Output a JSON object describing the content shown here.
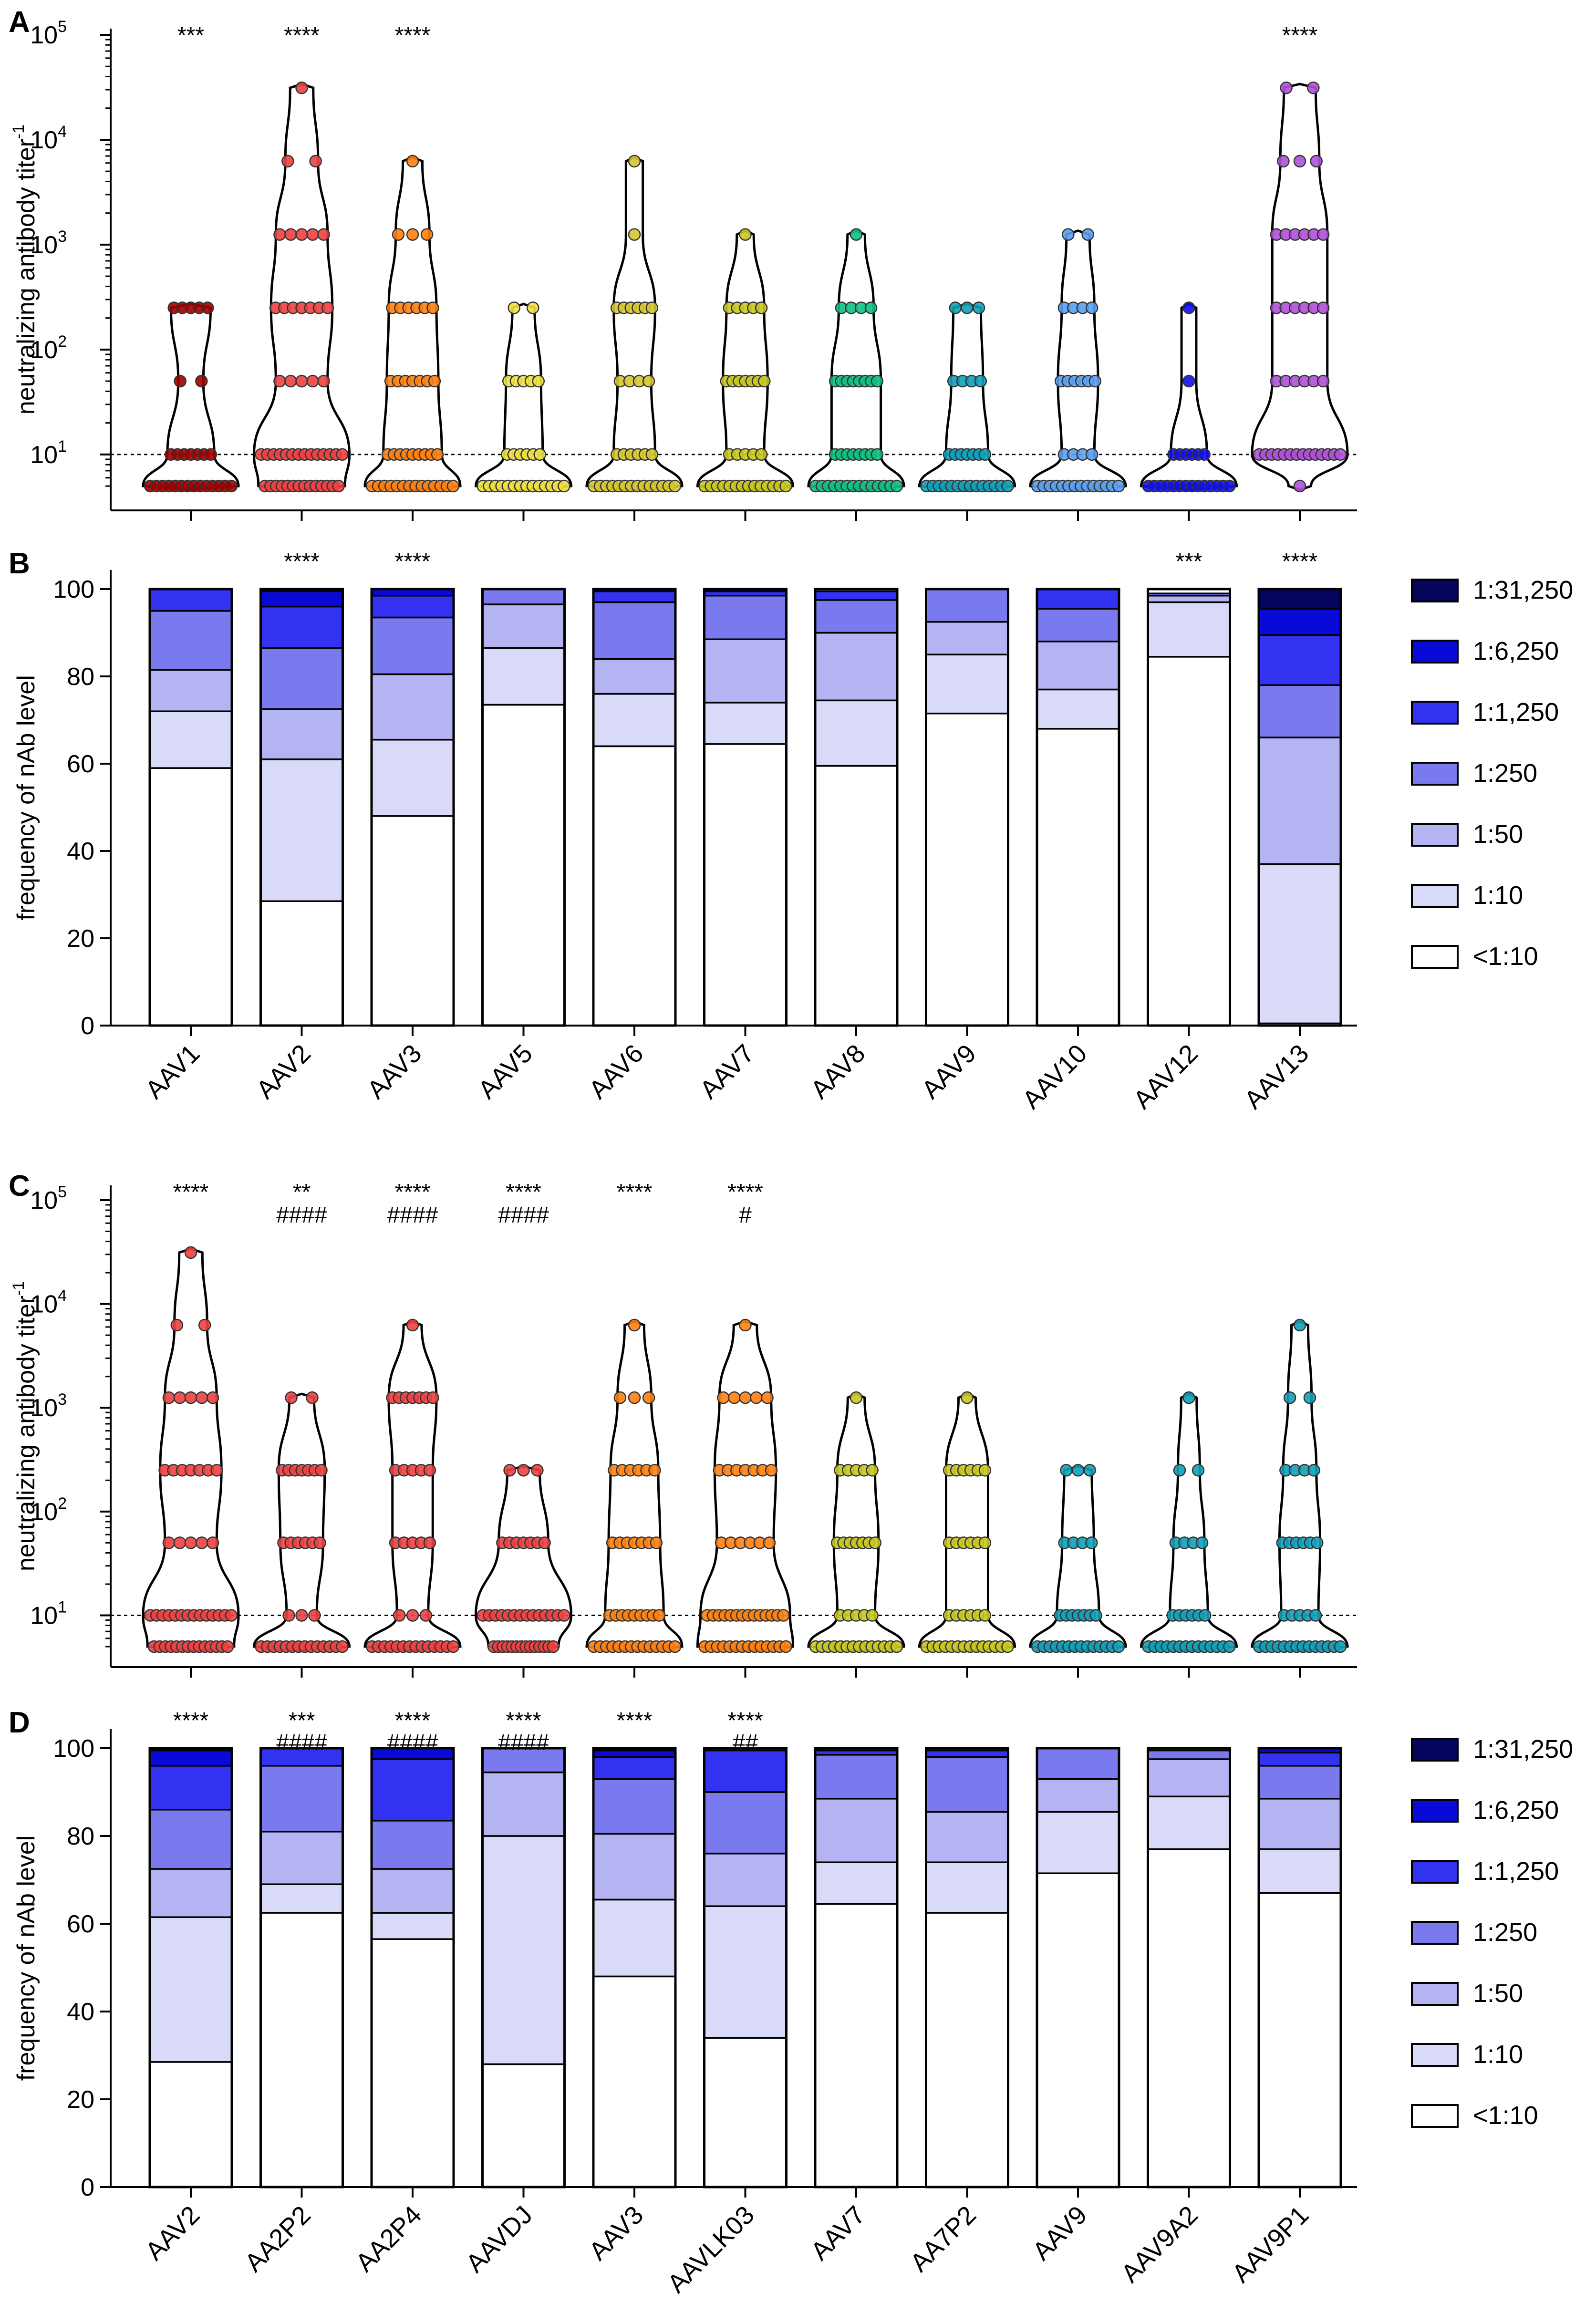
{
  "colors": {
    "levels": [
      "#ffffff",
      "#d9d9f8",
      "#b4b4f2",
      "#7a7aee",
      "#3232f0",
      "#0a0ad8",
      "#05055e"
    ],
    "reference_line": "#000000"
  },
  "chart_data": [
    {
      "type": "violin",
      "panel": "A",
      "ylabel": "neutralizing antibody titer",
      "ylabel_sup": "-1",
      "yscale": "log10",
      "ylim": [
        3,
        100000
      ],
      "yticks": [
        10,
        100,
        1000,
        10000,
        100000
      ],
      "ytick_labels": [
        {
          "base": "10",
          "exp": "1"
        },
        {
          "base": "10",
          "exp": "2"
        },
        {
          "base": "10",
          "exp": "3"
        },
        {
          "base": "10",
          "exp": "4"
        },
        {
          "base": "10",
          "exp": "5"
        }
      ],
      "reference_line": 10,
      "titer_levels": [
        5,
        10,
        50,
        250,
        1250,
        6250,
        31250
      ],
      "categories": [
        "AAV1",
        "AAV2",
        "AAV3",
        "AAV5",
        "AAV6",
        "AAV7",
        "AAV8",
        "AAV9",
        "AAV10",
        "AAV12",
        "AAV13"
      ],
      "colors": [
        "#a00000",
        "#ee4040",
        "#ff7f0e",
        "#f0e040",
        "#d4c830",
        "#c8c820",
        "#10c080",
        "#10a0b8",
        "#5aa0f0",
        "#1010f0",
        "#b050d8"
      ],
      "significance": [
        [
          "***"
        ],
        [
          "****"
        ],
        [
          "****"
        ],
        [],
        [],
        [],
        [],
        [],
        [],
        [],
        [
          "****"
        ]
      ],
      "counts": [
        [
          29,
          7,
          2,
          5,
          0,
          0,
          0
        ],
        [
          14,
          17,
          5,
          7,
          5,
          2,
          1
        ],
        [
          24,
          9,
          7,
          6,
          3,
          1,
          0
        ],
        [
          37,
          6,
          5,
          2,
          0,
          0,
          0
        ],
        [
          32,
          6,
          4,
          6,
          1,
          1,
          0
        ],
        [
          32,
          5,
          7,
          5,
          1,
          0,
          0
        ],
        [
          30,
          8,
          8,
          4,
          1,
          0,
          0
        ],
        [
          36,
          7,
          4,
          3,
          0,
          0,
          0
        ],
        [
          34,
          4,
          6,
          4,
          2,
          0,
          0
        ],
        [
          42,
          6,
          1,
          1,
          0,
          0,
          0
        ],
        [
          1,
          18,
          6,
          6,
          6,
          3,
          2
        ]
      ]
    },
    {
      "type": "stacked-bar",
      "panel": "B",
      "ylabel": "frequency of nAb level",
      "ylim": [
        0,
        100
      ],
      "yticks": [
        0,
        20,
        40,
        60,
        80,
        100
      ],
      "categories": [
        "AAV1",
        "AAV2",
        "AAV3",
        "AAV5",
        "AAV6",
        "AAV7",
        "AAV8",
        "AAV9",
        "AAV10",
        "AAV12",
        "AAV13"
      ],
      "significance": [
        [],
        [
          "****"
        ],
        [
          "****"
        ],
        [],
        [],
        [],
        [],
        [],
        [],
        [
          "***"
        ],
        [
          "****"
        ]
      ],
      "legend": [
        "1:31,250",
        "1:6,250",
        "1:1,250",
        "1:250",
        "1:50",
        "1:10",
        "<1:10"
      ],
      "series": [
        {
          "name": "<1:10",
          "values": [
            59,
            28.5,
            48,
            73.5,
            64,
            64.5,
            59.5,
            71.5,
            68,
            84.5,
            0.5
          ]
        },
        {
          "name": "1:10",
          "values": [
            13,
            32.5,
            17.5,
            13,
            12,
            9.5,
            15,
            13.5,
            9,
            12.5,
            36.5
          ]
        },
        {
          "name": "1:50",
          "values": [
            9.5,
            11.5,
            15,
            10,
            8,
            14.5,
            15.5,
            7.5,
            11,
            1.5,
            29
          ]
        },
        {
          "name": "1:250",
          "values": [
            13.5,
            14,
            13,
            3.5,
            13,
            10,
            7.5,
            7.5,
            7.5,
            0.5,
            12
          ]
        },
        {
          "name": "1:1,250",
          "values": [
            5,
            9.5,
            5,
            0,
            2.5,
            1,
            2,
            0,
            4.5,
            0,
            11.5
          ]
        },
        {
          "name": "1:6,250",
          "values": [
            0,
            3.5,
            1.5,
            0,
            0.5,
            0.5,
            0,
            0,
            0,
            0,
            6
          ]
        },
        {
          "name": "1:31,250",
          "values": [
            0,
            0.5,
            0,
            0,
            0,
            0,
            0,
            0,
            0,
            0,
            4.5
          ]
        }
      ]
    },
    {
      "type": "violin",
      "panel": "C",
      "ylabel": "neutralizing antibody titer",
      "ylabel_sup": "-1",
      "yscale": "log10",
      "ylim": [
        3,
        100000
      ],
      "yticks": [
        10,
        100,
        1000,
        10000,
        100000
      ],
      "ytick_labels": [
        {
          "base": "10",
          "exp": "1"
        },
        {
          "base": "10",
          "exp": "2"
        },
        {
          "base": "10",
          "exp": "3"
        },
        {
          "base": "10",
          "exp": "4"
        },
        {
          "base": "10",
          "exp": "5"
        }
      ],
      "reference_line": 10,
      "titer_levels": [
        5,
        10,
        50,
        250,
        1250,
        6250,
        31250
      ],
      "categories": [
        "AAV2",
        "AA2P2",
        "AA2P4",
        "AAVDJ",
        "AAV3",
        "AAVLK03",
        "AAV7",
        "AA7P2",
        "AAV9",
        "AAV9A2",
        "AAV9P1"
      ],
      "colors": [
        "#ee4040",
        "#ee4040",
        "#ee4040",
        "#ee4040",
        "#ff7f0e",
        "#ff7f0e",
        "#c8c820",
        "#c8c820",
        "#10a0b8",
        "#10a0b8",
        "#10a0b8"
      ],
      "significance": [
        [
          "****"
        ],
        [
          "**",
          "####"
        ],
        [
          "****",
          "####"
        ],
        [
          "****",
          "####"
        ],
        [
          "****"
        ],
        [
          "****",
          "#"
        ],
        [],
        [],
        [],
        [],
        []
      ],
      "counts": [
        [
          14,
          17,
          5,
          7,
          5,
          2,
          1
        ],
        [
          30,
          3,
          6,
          7,
          2,
          0,
          0
        ],
        [
          28,
          3,
          5,
          5,
          7,
          1,
          0
        ],
        [
          14,
          26,
          7,
          3,
          0,
          0,
          0
        ],
        [
          24,
          9,
          7,
          6,
          3,
          1,
          0
        ],
        [
          17,
          15,
          6,
          7,
          5,
          1,
          0
        ],
        [
          32,
          5,
          7,
          5,
          1,
          0,
          0
        ],
        [
          31,
          6,
          6,
          6,
          1,
          0,
          0
        ],
        [
          36,
          7,
          4,
          3,
          0,
          0,
          0
        ],
        [
          38,
          6,
          4,
          2,
          1,
          0,
          0
        ],
        [
          33,
          5,
          6,
          4,
          2,
          1,
          0
        ]
      ]
    },
    {
      "type": "stacked-bar",
      "panel": "D",
      "ylabel": "frequency of nAb level",
      "ylim": [
        0,
        100
      ],
      "yticks": [
        0,
        20,
        40,
        60,
        80,
        100
      ],
      "categories": [
        "AAV2",
        "AA2P2",
        "AA2P4",
        "AAVDJ",
        "AAV3",
        "AAVLK03",
        "AAV7",
        "AA7P2",
        "AAV9",
        "AAV9A2",
        "AAV9P1"
      ],
      "significance": [
        [
          "****"
        ],
        [
          "***",
          "####"
        ],
        [
          "****",
          "####"
        ],
        [
          "****",
          "####"
        ],
        [
          "****"
        ],
        [
          "****",
          "##"
        ],
        [],
        [],
        [],
        [],
        []
      ],
      "legend": [
        "1:31,250",
        "1:6,250",
        "1:1,250",
        "1:250",
        "1:50",
        "1:10",
        "<1:10"
      ],
      "series": [
        {
          "name": "<1:10",
          "values": [
            28.5,
            62.5,
            56.5,
            28,
            48,
            34,
            64.5,
            62.5,
            71.5,
            77,
            67
          ]
        },
        {
          "name": "1:10",
          "values": [
            33,
            6.5,
            6,
            52,
            17.5,
            30,
            9.5,
            11.5,
            14,
            12,
            10
          ]
        },
        {
          "name": "1:50",
          "values": [
            11,
            12,
            10,
            14.5,
            15,
            12,
            14.5,
            11.5,
            7.5,
            8.5,
            11.5
          ]
        },
        {
          "name": "1:250",
          "values": [
            13.5,
            15,
            11,
            5.5,
            12.5,
            14,
            10,
            12.5,
            7,
            2,
            7.5
          ]
        },
        {
          "name": "1:1,250",
          "values": [
            10,
            4,
            14,
            0,
            5,
            9.5,
            1,
            1.5,
            0,
            0.5,
            3
          ]
        },
        {
          "name": "1:6,250",
          "values": [
            3.5,
            0,
            2.5,
            0,
            1.5,
            0.5,
            0.5,
            0.5,
            0,
            0,
            1
          ]
        },
        {
          "name": "1:31,250",
          "values": [
            0.5,
            0,
            0,
            0,
            0.5,
            0,
            0,
            0,
            0,
            0,
            0
          ]
        }
      ]
    }
  ],
  "panel_labels": [
    "A",
    "B",
    "C",
    "D"
  ]
}
